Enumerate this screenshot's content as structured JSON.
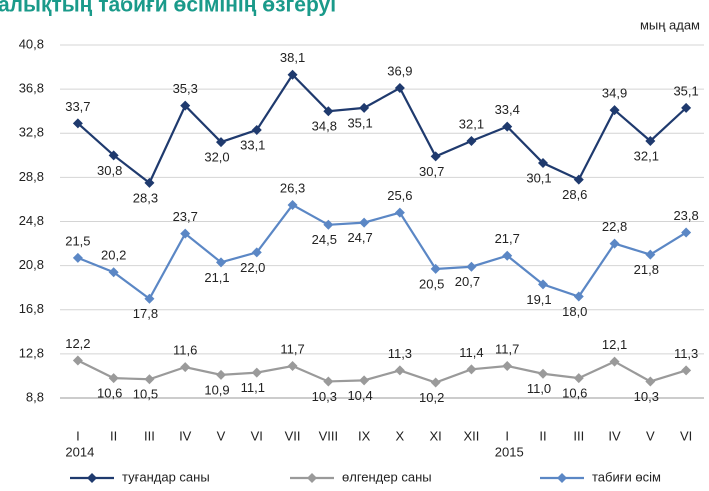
{
  "chart_data": {
    "type": "line",
    "title": "алықтың табиғи өсімінің өзгеруі",
    "unit_label": "мың адам",
    "categories": [
      "I",
      "II",
      "III",
      "IV",
      "V",
      "VI",
      "VII",
      "VIII",
      "IX",
      "X",
      "XI",
      "XII",
      "I",
      "II",
      "III",
      "IV",
      "V",
      "VI"
    ],
    "category_groups": [
      {
        "label": "2014",
        "start": 0
      },
      {
        "label": "2015",
        "start": 12
      }
    ],
    "ylim": [
      8.8,
      40.8
    ],
    "yticks": [
      {
        "value": 8.8,
        "label": "8,8"
      },
      {
        "value": 12.8,
        "label": "12,8"
      },
      {
        "value": 16.8,
        "label": "16,8"
      },
      {
        "value": 20.8,
        "label": "20,8"
      },
      {
        "value": 24.8,
        "label": "24,8"
      },
      {
        "value": 28.8,
        "label": "28,8"
      },
      {
        "value": 32.8,
        "label": "32,8"
      },
      {
        "value": 36.8,
        "label": "36,8"
      },
      {
        "value": 40.8,
        "label": "40,8"
      }
    ],
    "grid": true,
    "legend": "bottom",
    "series": [
      {
        "name": "туғандар саны",
        "color": "#1f3a6e",
        "values": [
          33.7,
          30.8,
          28.3,
          35.3,
          32.0,
          33.1,
          38.1,
          34.8,
          35.1,
          36.9,
          30.7,
          32.1,
          33.4,
          30.1,
          28.6,
          34.9,
          32.1,
          35.1
        ],
        "value_labels": [
          "33,7",
          "30,8",
          "28,3",
          "35,3",
          "32,0",
          "33,1",
          "38,1",
          "34,8",
          "35,1",
          "36,9",
          "30,7",
          "32,1",
          "33,4",
          "30,1",
          "28,6",
          "34,9",
          "32,1",
          "35,1"
        ]
      },
      {
        "name": "өлгендер саны",
        "color": "#9a9a9a",
        "values": [
          12.2,
          10.6,
          10.5,
          11.6,
          10.9,
          11.1,
          11.7,
          10.3,
          10.4,
          11.3,
          10.2,
          11.4,
          11.7,
          11.0,
          10.6,
          12.1,
          10.3,
          11.3
        ],
        "value_labels": [
          "12,2",
          "10,6",
          "10,5",
          "11,6",
          "10,9",
          "11,1",
          "11,7",
          "10,3",
          "10,4",
          "11,3",
          "10,2",
          "11,4",
          "11,7",
          "11,0",
          "10,6",
          "12,1",
          "10,3",
          "11,3"
        ]
      },
      {
        "name": "табиғи өсім",
        "color": "#5b87c5",
        "values": [
          21.5,
          20.2,
          17.8,
          23.7,
          21.1,
          22.0,
          26.3,
          24.5,
          24.7,
          25.6,
          20.5,
          20.7,
          21.7,
          19.1,
          18.0,
          22.8,
          21.8,
          23.8
        ],
        "value_labels": [
          "21,5",
          "20,2",
          "17,8",
          "23,7",
          "21,1",
          "22,0",
          "26,3",
          "24,5",
          "24,7",
          "25,6",
          "20,5",
          "20,7",
          "21,7",
          "19,1",
          "18,0",
          "22,8",
          "21,8",
          "23,8"
        ]
      }
    ]
  }
}
